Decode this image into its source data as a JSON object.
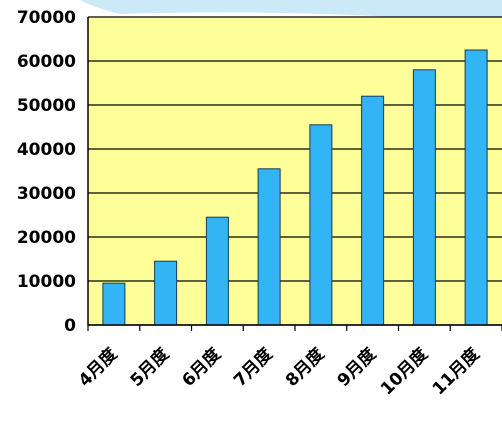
{
  "chart_data": {
    "type": "bar",
    "title": "",
    "xlabel": "",
    "ylabel": "",
    "categories": [
      "4月度",
      "5月度",
      "6月度",
      "7月度",
      "8月度",
      "9月度",
      "10月度",
      "11月度"
    ],
    "values": [
      9500,
      14500,
      24500,
      35500,
      45500,
      52000,
      58000,
      62500
    ],
    "ylim": [
      0,
      70000
    ],
    "yticks": [
      "0",
      "10000",
      "20000",
      "30000",
      "40000",
      "50000",
      "60000",
      "70000"
    ],
    "grid": true,
    "legend": "none",
    "colors": {
      "plot_background": "#FFFF99",
      "bar_fill": "#33B5F5",
      "bar_stroke": "#1a3a55",
      "gridline": "#000000",
      "decoration": "#BFE3F5"
    }
  }
}
